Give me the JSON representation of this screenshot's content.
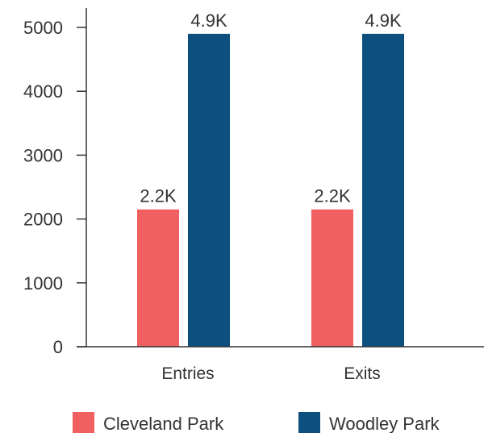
{
  "chart_data": {
    "type": "bar",
    "title": "",
    "xlabel": "",
    "ylabel": "",
    "categories": [
      "Entries",
      "Exits"
    ],
    "series": [
      {
        "name": "Cleveland Park",
        "color": "#f06060",
        "values": [
          2150,
          2150
        ],
        "labels": [
          "2.2K",
          "2.2K"
        ]
      },
      {
        "name": "Woodley Park",
        "color": "#0d4f7e",
        "values": [
          4900,
          4900
        ],
        "labels": [
          "4.9K",
          "4.9K"
        ]
      }
    ],
    "yticks": [
      "0",
      "1000",
      "2000",
      "3000",
      "4000",
      "5000"
    ],
    "ylim": [
      0,
      5000
    ],
    "grid": false,
    "legend_position": "bottom"
  }
}
